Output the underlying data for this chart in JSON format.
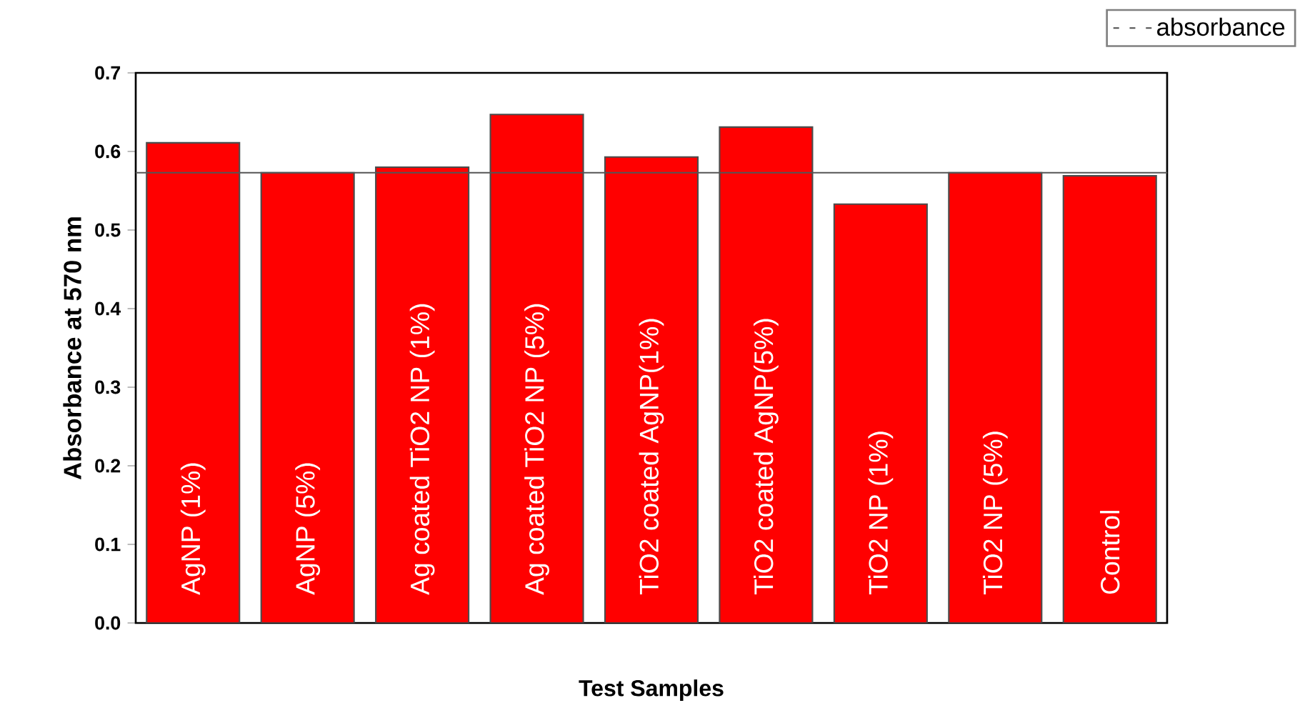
{
  "chart_data": {
    "type": "bar",
    "xlabel": "Test Samples",
    "ylabel": "Absorbance at 570 nm",
    "categories": [
      "AgNP (1%)",
      "AgNP (5%)",
      "Ag coated TiO2 NP (1%)",
      "Ag coated TiO2 NP (5%)",
      "TiO2 coated AgNP(1%)",
      "TiO2 coated AgNP(5%)",
      "TiO2 NP (1%)",
      "TiO2 NP (5%)",
      "Control"
    ],
    "series": [
      {
        "name": "absorbance",
        "color": "#ff0000",
        "values": [
          0.611,
          0.573,
          0.58,
          0.647,
          0.593,
          0.631,
          0.533,
          0.573,
          0.569
        ]
      }
    ],
    "ylim": [
      0,
      0.7
    ],
    "yticks": [
      {
        "value": 0,
        "label": "0.0"
      },
      {
        "value": 0.1,
        "label": "0.1"
      },
      {
        "value": 0.2,
        "label": "0.2"
      },
      {
        "value": 0.3,
        "label": "0.3"
      },
      {
        "value": 0.4,
        "label": "0.4"
      },
      {
        "value": 0.5,
        "label": "0.5"
      },
      {
        "value": 0.6,
        "label": "0.6"
      },
      {
        "value": 0.7,
        "label": "0.7"
      }
    ],
    "ref_lines": [
      {
        "axis": "y",
        "value": 0.573,
        "color": "#555555"
      }
    ],
    "legend": "top right"
  }
}
